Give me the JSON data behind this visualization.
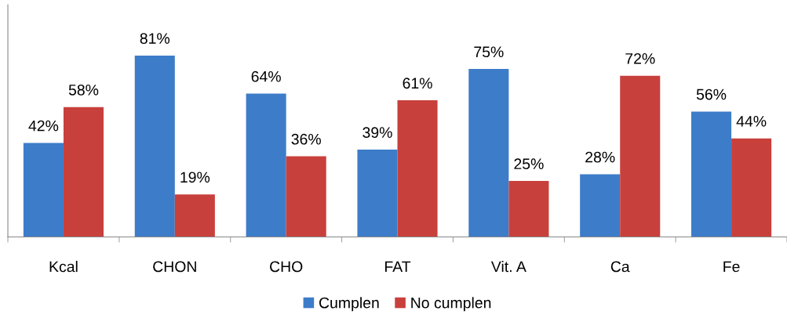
{
  "chart_data": {
    "type": "bar",
    "categories": [
      "Kcal",
      "CHON",
      "CHO",
      "FAT",
      "Vit. A",
      "Ca",
      "Fe"
    ],
    "series": [
      {
        "name": "Cumplen",
        "color": "#3d7cc9",
        "values": [
          42,
          81,
          64,
          39,
          75,
          28,
          56
        ],
        "value_labels": [
          "42%",
          "81%",
          "64%",
          "39%",
          "75%",
          "28%",
          "56%"
        ]
      },
      {
        "name": "No cumplen",
        "color": "#c8403c",
        "values": [
          58,
          19,
          36,
          61,
          25,
          72,
          44
        ],
        "value_labels": [
          "58%",
          "19%",
          "36%",
          "61%",
          "25%",
          "72%",
          "44%"
        ]
      }
    ],
    "grid": false,
    "legend": "bottom",
    "tick_labels": "x"
  }
}
